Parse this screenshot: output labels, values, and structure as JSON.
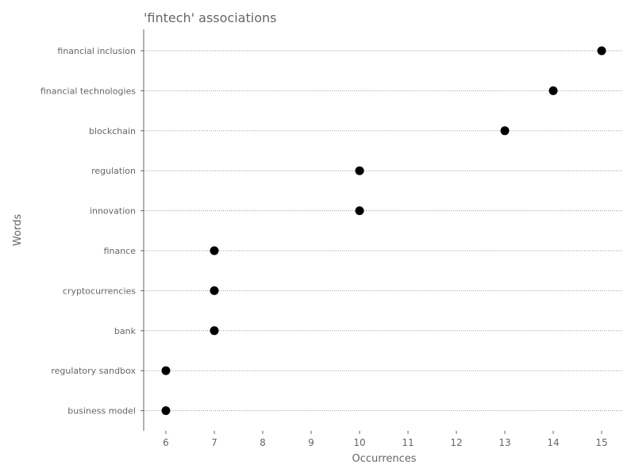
{
  "chart_data": {
    "type": "scatter",
    "title": "'fintech' associations",
    "xlabel": "Occurrences",
    "ylabel": "Words",
    "categories": [
      "financial inclusion",
      "financial technologies",
      "blockchain",
      "regulation",
      "innovation",
      "finance",
      "cryptocurrencies",
      "bank",
      "regulatory sandbox",
      "business model"
    ],
    "values": [
      15,
      14,
      13,
      10,
      10,
      7,
      7,
      7,
      6,
      6
    ],
    "xticks": [
      "6",
      "7",
      "8",
      "9",
      "10",
      "11",
      "12",
      "13",
      "14",
      "15"
    ],
    "xlim": [
      5.55,
      15.4
    ],
    "grid": "horizontal dotted",
    "legend": "none",
    "colors": {
      "marker": "#000000",
      "text": "#666666",
      "grid": "#999999",
      "axis": "#666666"
    }
  }
}
